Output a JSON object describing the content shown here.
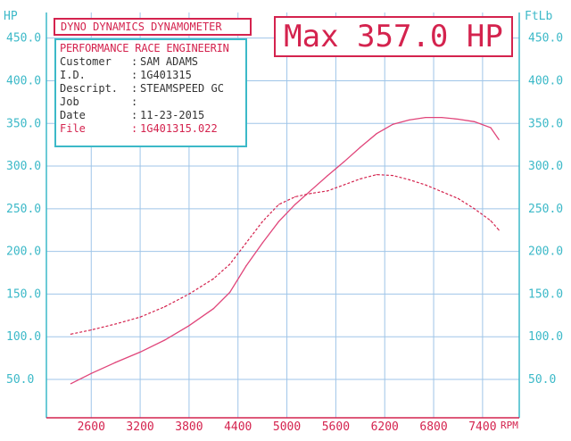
{
  "header": {
    "title": "DYNO DYNAMICS DYNAMOMETER",
    "max_label": "Max 357.0 HP"
  },
  "info": {
    "company": "PERFORMANCE RACE ENGINEERIN",
    "rows": [
      {
        "key": "Customer",
        "value": "SAM ADAMS"
      },
      {
        "key": "I.D.",
        "value": "1G401315"
      },
      {
        "key": "Descript.",
        "value": "STEAMSPEED GC"
      },
      {
        "key": "Job",
        "value": ""
      },
      {
        "key": "Date",
        "value": "11-23-2015"
      }
    ],
    "file": {
      "key": "File",
      "value": "1G401315.022"
    }
  },
  "colors": {
    "grid": "#9fc5e8",
    "axis_left": "#3cb9c8",
    "axis_right": "#3cb9c8",
    "accent": "#d4234e",
    "hp_curve": "#e0457a",
    "torque_curve": "#d4234e"
  },
  "chart_data": {
    "type": "line",
    "title": "Max 357.0 HP",
    "ylabel": "HP",
    "y2label": "FtLb",
    "xlabel": "RPM",
    "x_ticks": [
      2600,
      3200,
      3800,
      4400,
      5000,
      5600,
      6200,
      6800,
      7400
    ],
    "y_ticks": [
      50,
      100,
      150,
      200,
      250,
      300,
      350,
      400,
      450
    ],
    "y_tick_labels": [
      "50.0",
      "100.0",
      "150.0",
      "200.0",
      "250.0",
      "300.0",
      "350.0",
      "400.0",
      "450.0"
    ],
    "y2_ticks": [
      50,
      100,
      150,
      200,
      250,
      300,
      350,
      400,
      450
    ],
    "y2_tick_labels": [
      "50.0",
      "100.0",
      "150.0",
      "200.0",
      "250.0",
      "300.0",
      "350.0",
      "400.0",
      "450.0"
    ],
    "xlim": [
      2050,
      7850
    ],
    "ylim": [
      5,
      480
    ],
    "grid": true,
    "series": [
      {
        "id": "hp",
        "x": [
          2350,
          2600,
          2900,
          3200,
          3500,
          3800,
          4100,
          4300,
          4500,
          4700,
          4900,
          5100,
          5300,
          5500,
          5700,
          5900,
          6100,
          6300,
          6500,
          6700,
          6900,
          7100,
          7300,
          7500,
          7600
        ],
        "y": [
          45,
          57,
          70,
          82,
          96,
          113,
          133,
          152,
          183,
          210,
          235,
          255,
          272,
          289,
          305,
          322,
          338,
          349,
          354,
          357,
          357,
          355,
          352,
          345,
          331
        ]
      },
      {
        "id": "torque",
        "x": [
          2350,
          2600,
          2900,
          3200,
          3500,
          3800,
          4100,
          4300,
          4500,
          4700,
          4900,
          5100,
          5300,
          5500,
          5700,
          5900,
          6100,
          6300,
          6500,
          6700,
          6900,
          7100,
          7300,
          7500,
          7600
        ],
        "y": [
          103,
          108,
          115,
          123,
          135,
          150,
          168,
          185,
          210,
          235,
          255,
          264,
          268,
          271,
          278,
          285,
          290,
          289,
          284,
          278,
          270,
          262,
          250,
          236,
          225
        ]
      }
    ]
  }
}
